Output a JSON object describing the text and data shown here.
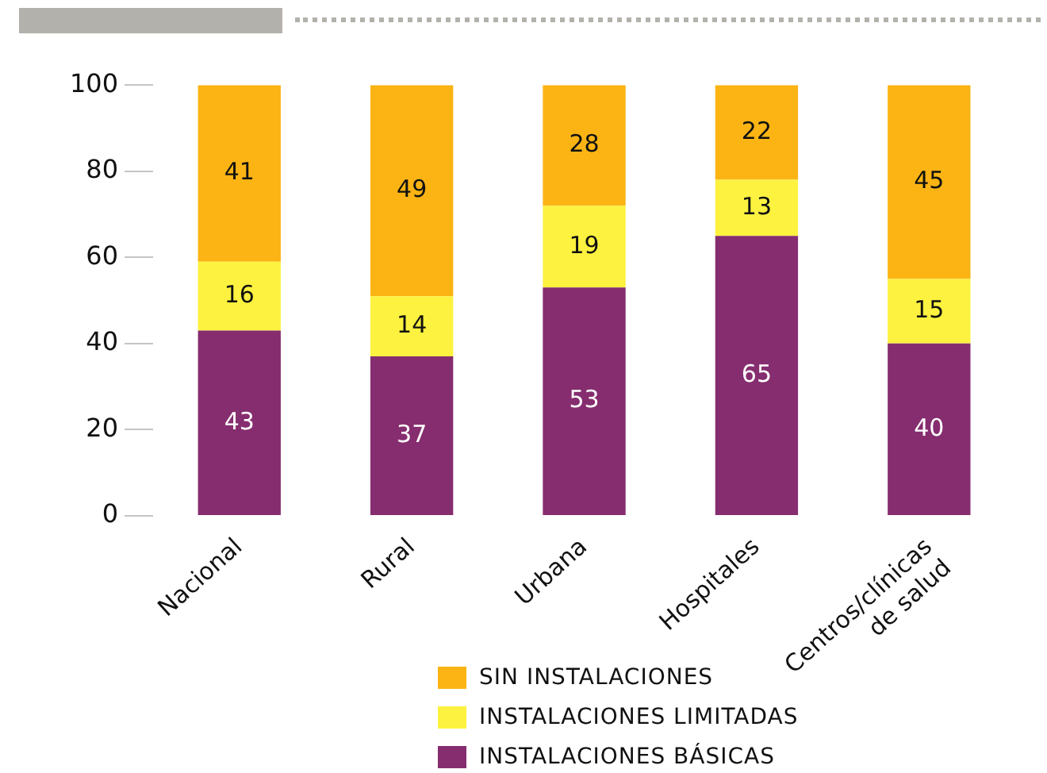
{
  "chart_data": {
    "type": "bar",
    "stacked": true,
    "categories": [
      "Nacional",
      "Rural",
      "Urbana",
      "Hospitales",
      "Centros/clínicas de salud"
    ],
    "series": [
      {
        "name": "INSTALACIONES BÁSICAS",
        "color": "#862d6f",
        "values": [
          43,
          37,
          53,
          65,
          40
        ]
      },
      {
        "name": "INSTALACIONES LIMITADAS",
        "color": "#fdf23f",
        "values": [
          16,
          14,
          19,
          13,
          15
        ]
      },
      {
        "name": "SIN INSTALACIONES",
        "color": "#fbb414",
        "values": [
          41,
          49,
          28,
          22,
          45
        ]
      }
    ],
    "ylim": [
      0,
      100
    ],
    "yticks": [
      0,
      20,
      40,
      60,
      80,
      100
    ],
    "grid": false,
    "legend": "bottom",
    "data_labels": true
  }
}
